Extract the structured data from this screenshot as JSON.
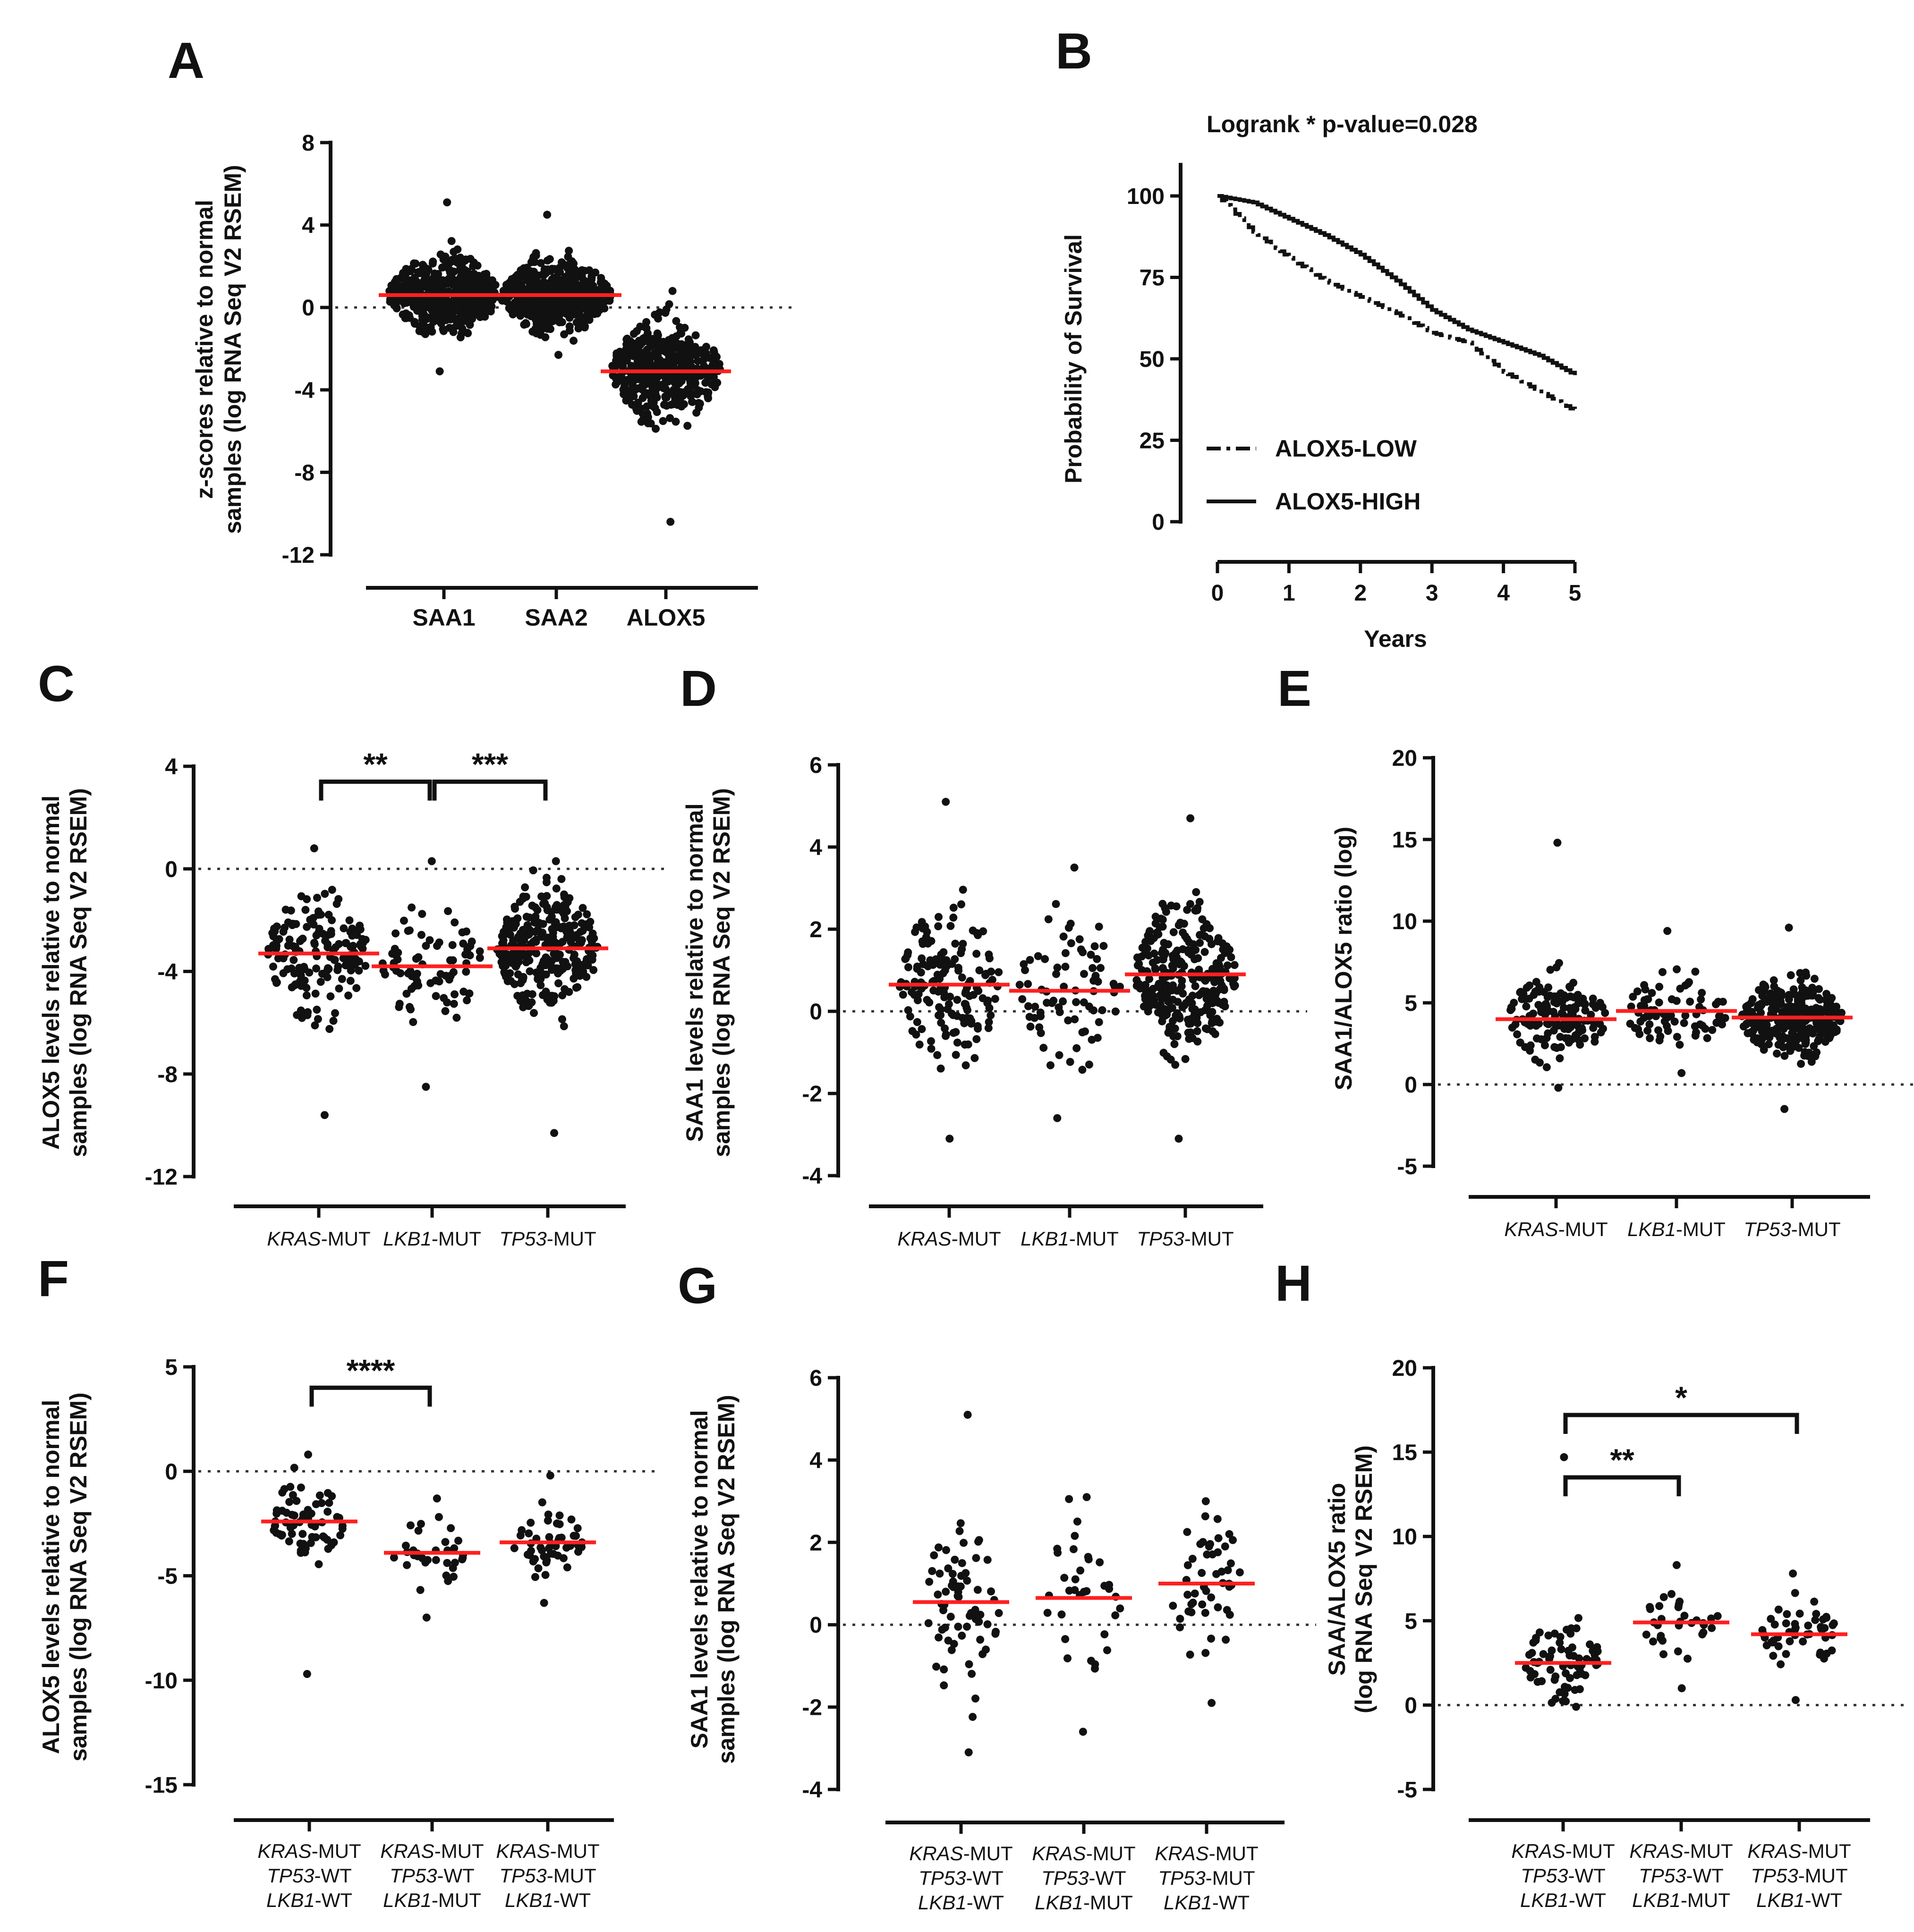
{
  "chart_data": [
    {
      "panel": "A",
      "type": "scatter",
      "ylabel": [
        "z-scores relative to normal",
        "samples (log RNA Seq V2 RSEM)"
      ],
      "ylim": [
        -12,
        8
      ],
      "yticks": [
        8,
        4,
        0,
        -4,
        -8,
        -12
      ],
      "categories": [
        "SAA1",
        "SAA2",
        "ALOX5"
      ],
      "category_style": "bold",
      "groups": [
        {
          "name": "SAA1",
          "median": 0.6,
          "n": 500,
          "min": -3.1,
          "max": 5.1,
          "sd": 1.4
        },
        {
          "name": "SAA2",
          "median": 0.6,
          "n": 500,
          "min": -2.3,
          "max": 4.5,
          "sd": 1.3
        },
        {
          "name": "ALOX5",
          "median": -3.1,
          "n": 460,
          "min": -10.4,
          "max": 0.8,
          "sd": 1.8
        }
      ],
      "zero_line": true,
      "brackets": []
    },
    {
      "panel": "B",
      "type": "line",
      "title": "Logrank *  p-value=0.028",
      "xlabel": "Years",
      "ylabel": "Probability of Survival",
      "xlim": [
        0,
        5
      ],
      "ylim": [
        0,
        100
      ],
      "xticks": [
        0,
        1,
        2,
        3,
        4,
        5
      ],
      "yticks": [
        100,
        75,
        50,
        25,
        0
      ],
      "series": [
        {
          "name": "ALOX5-LOW",
          "style": "dash-dot",
          "x": [
            0,
            0.5,
            1.0,
            1.5,
            2.0,
            2.5,
            3.0,
            3.5,
            4.0,
            4.5,
            5.0
          ],
          "y": [
            100,
            89,
            81,
            74,
            69,
            64,
            58,
            55,
            46,
            40,
            34
          ]
        },
        {
          "name": "ALOX5-HIGH",
          "style": "solid",
          "x": [
            0,
            0.5,
            1.0,
            1.5,
            2.0,
            2.5,
            3.0,
            3.5,
            4.0,
            4.5,
            5.0
          ],
          "y": [
            100,
            98,
            93,
            88,
            82,
            74,
            65,
            59,
            55,
            51,
            45
          ]
        }
      ]
    },
    {
      "panel": "C",
      "type": "scatter",
      "ylabel": [
        "ALOX5 levels relative to normal",
        "samples (log RNA Seq V2 RSEM)"
      ],
      "ylim": [
        -12,
        4
      ],
      "yticks": [
        4,
        0,
        -4,
        -8,
        -12
      ],
      "categories": [
        [
          "KRAS",
          "-MUT"
        ],
        [
          "LKB1",
          "-MUT"
        ],
        [
          "TP53",
          "-MUT"
        ]
      ],
      "groups": [
        {
          "median": -3.3,
          "n": 160,
          "min": -9.6,
          "max": 0.8,
          "sd": 1.9
        },
        {
          "median": -3.8,
          "n": 80,
          "min": -8.5,
          "max": 0.3,
          "sd": 1.7
        },
        {
          "median": -3.1,
          "n": 300,
          "min": -10.3,
          "max": 0.3,
          "sd": 1.8
        }
      ],
      "zero_line": true,
      "brackets": [
        {
          "from": 0,
          "to": 1,
          "y": 3.4,
          "label": "**"
        },
        {
          "from": 1,
          "to": 2,
          "y": 3.4,
          "label": "***"
        }
      ]
    },
    {
      "panel": "D",
      "type": "scatter",
      "ylabel": [
        "SAA1 levels relative to normal",
        "samples (log RNA Seq V2 RSEM)"
      ],
      "ylim": [
        -4,
        6
      ],
      "yticks": [
        6,
        4,
        2,
        0,
        -2,
        -4
      ],
      "categories": [
        [
          "KRAS",
          "-MUT"
        ],
        [
          "LKB1",
          "-MUT"
        ],
        [
          "TP53",
          "-MUT"
        ]
      ],
      "groups": [
        {
          "median": 0.65,
          "n": 160,
          "min": -3.1,
          "max": 5.1,
          "sd": 1.5
        },
        {
          "median": 0.5,
          "n": 80,
          "min": -2.6,
          "max": 3.5,
          "sd": 1.5
        },
        {
          "median": 0.9,
          "n": 300,
          "min": -3.1,
          "max": 4.7,
          "sd": 1.4
        }
      ],
      "zero_line": true,
      "brackets": []
    },
    {
      "panel": "E",
      "type": "scatter",
      "ylabel": [
        "SAA1/ALOX5 ratio  (log)"
      ],
      "ylim": [
        -5,
        20
      ],
      "yticks": [
        20,
        15,
        10,
        5,
        0,
        -5
      ],
      "categories": [
        [
          "KRAS",
          "-MUT"
        ],
        [
          "LKB1",
          "-MUT"
        ],
        [
          "TP53",
          "-MUT"
        ]
      ],
      "groups": [
        {
          "median": 4.0,
          "n": 160,
          "min": -0.2,
          "max": 14.8,
          "sd": 1.9
        },
        {
          "median": 4.5,
          "n": 80,
          "min": 0.7,
          "max": 9.4,
          "sd": 1.8
        },
        {
          "median": 4.1,
          "n": 300,
          "min": -1.5,
          "max": 9.6,
          "sd": 1.8
        }
      ],
      "zero_line": true,
      "brackets": []
    },
    {
      "panel": "F",
      "type": "scatter",
      "ylabel": [
        "ALOX5 levels relative to normal",
        "samples (log RNA Seq V2 RSEM)"
      ],
      "ylim": [
        -15,
        5
      ],
      "yticks": [
        5,
        0,
        -5,
        -10,
        -15
      ],
      "categories": [
        [
          [
            "KRAS",
            "-MUT"
          ],
          [
            "TP53",
            "-WT"
          ],
          [
            "LKB1",
            "-WT"
          ]
        ],
        [
          [
            "KRAS",
            "-MUT"
          ],
          [
            "TP53",
            "-WT"
          ],
          [
            "LKB1",
            "-MUT"
          ]
        ],
        [
          [
            "KRAS",
            "-MUT"
          ],
          [
            "TP53",
            "-MUT"
          ],
          [
            "LKB1",
            "-WT"
          ]
        ]
      ],
      "groups": [
        {
          "median": -2.4,
          "n": 70,
          "min": -9.7,
          "max": 0.8,
          "sd": 1.7
        },
        {
          "median": -3.9,
          "n": 35,
          "min": -7.0,
          "max": -1.3,
          "sd": 1.3
        },
        {
          "median": -3.4,
          "n": 50,
          "min": -6.3,
          "max": -0.2,
          "sd": 1.4
        }
      ],
      "zero_line": true,
      "brackets": [
        {
          "from": 0,
          "to": 1,
          "y": 4.0,
          "label": "****"
        }
      ]
    },
    {
      "panel": "G",
      "type": "scatter",
      "ylabel": [
        "SAA1 levels relative to normal",
        "samples (log RNA Seq V2 RSEM)"
      ],
      "ylim": [
        -4,
        6
      ],
      "yticks": [
        6,
        4,
        2,
        0,
        -2,
        -4
      ],
      "categories": [
        [
          [
            "KRAS",
            "-MUT"
          ],
          [
            "TP53",
            "-WT"
          ],
          [
            "LKB1",
            "-WT"
          ]
        ],
        [
          [
            "KRAS",
            "-MUT"
          ],
          [
            "TP53",
            "-WT"
          ],
          [
            "LKB1",
            "-MUT"
          ]
        ],
        [
          [
            "KRAS",
            "-MUT"
          ],
          [
            "TP53",
            "-MUT"
          ],
          [
            "LKB1",
            "-WT"
          ]
        ]
      ],
      "groups": [
        {
          "median": 0.55,
          "n": 70,
          "min": -3.1,
          "max": 5.1,
          "sd": 1.6
        },
        {
          "median": 0.65,
          "n": 35,
          "min": -2.6,
          "max": 3.1,
          "sd": 1.6
        },
        {
          "median": 1.0,
          "n": 50,
          "min": -1.9,
          "max": 3.0,
          "sd": 1.3
        }
      ],
      "zero_line": true,
      "brackets": []
    },
    {
      "panel": "H",
      "type": "scatter",
      "ylabel": [
        "SAA/ALOX5 ratio",
        "(log RNA Seq V2 RSEM)"
      ],
      "ylim": [
        -5,
        20
      ],
      "yticks": [
        20,
        15,
        10,
        5,
        0,
        -5
      ],
      "categories": [
        [
          [
            "KRAS",
            "-MUT"
          ],
          [
            "TP53",
            "-WT"
          ],
          [
            "LKB1",
            "-WT"
          ]
        ],
        [
          [
            "KRAS",
            "-MUT"
          ],
          [
            "TP53",
            "-WT"
          ],
          [
            "LKB1",
            "-MUT"
          ]
        ],
        [
          [
            "KRAS",
            "-MUT"
          ],
          [
            "TP53",
            "-MUT"
          ],
          [
            "LKB1",
            "-WT"
          ]
        ]
      ],
      "groups": [
        {
          "median": 2.5,
          "n": 70,
          "min": -0.1,
          "max": 14.7,
          "sd": 1.8
        },
        {
          "median": 4.9,
          "n": 35,
          "min": 1.0,
          "max": 8.3,
          "sd": 1.6
        },
        {
          "median": 4.2,
          "n": 50,
          "min": 0.3,
          "max": 7.8,
          "sd": 1.6
        }
      ],
      "zero_line": true,
      "brackets": [
        {
          "from": 0,
          "to": 1,
          "y": 13.5,
          "label": "**"
        },
        {
          "from": 0,
          "to": 2,
          "y": 17.2,
          "label": "*"
        }
      ]
    }
  ]
}
